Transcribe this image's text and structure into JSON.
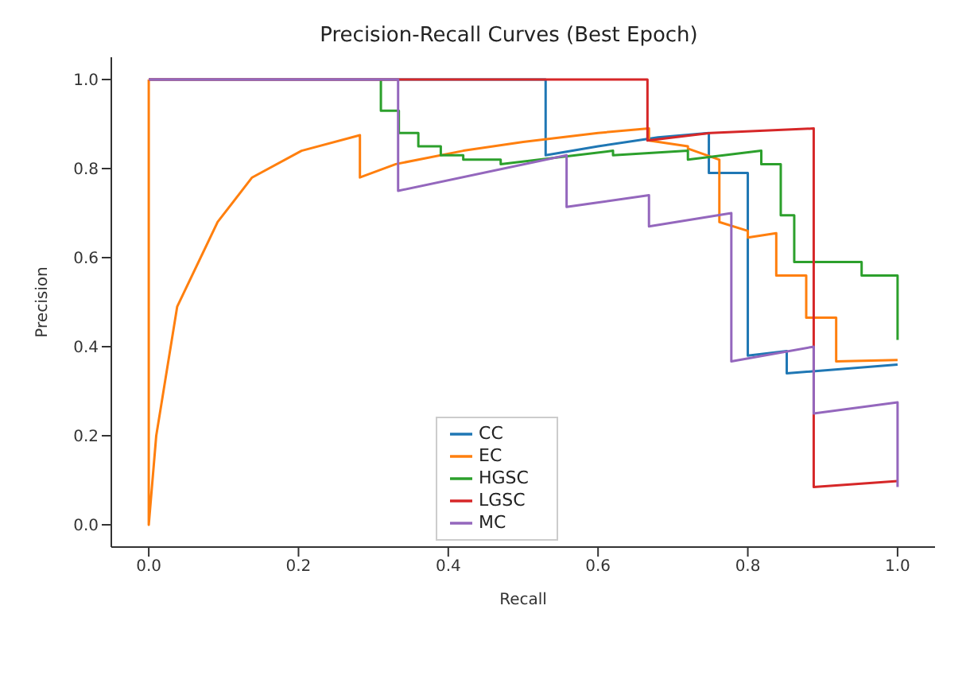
{
  "chart_data": {
    "type": "line",
    "title": "Precision-Recall Curves (Best Epoch)",
    "xlabel": "Recall",
    "ylabel": "Precision",
    "xlim": [
      -0.05,
      1.05
    ],
    "ylim": [
      -0.05,
      1.05
    ],
    "xticks": [
      {
        "value": 0,
        "label": "0.0"
      },
      0.2,
      0.4,
      0.6,
      0.8,
      {
        "value": 1,
        "label": "1.0"
      }
    ],
    "yticks": [
      {
        "value": 0,
        "label": "0.0"
      },
      0.2,
      0.4,
      0.6,
      0.8,
      {
        "value": 1,
        "label": "1.0"
      }
    ],
    "grid": false,
    "legend": "bottom",
    "marker": "none",
    "line_style": "solid",
    "series": [
      {
        "name": "CC",
        "color": "#1f77b4",
        "x": [
          0,
          0.53,
          0.53,
          0.6,
          0.68,
          0.748,
          0.748,
          0.8,
          0.8,
          0.852,
          0.852,
          1.0
        ],
        "values": [
          1.0,
          1.0,
          0.83,
          0.85,
          0.87,
          0.88,
          0.79,
          0.79,
          0.38,
          0.39,
          0.34,
          0.36
        ]
      },
      {
        "name": "EC",
        "color": "#ff7f0e",
        "x": [
          0,
          0,
          0.01,
          0.038,
          0.092,
          0.138,
          0.204,
          0.282,
          0.282,
          0.33,
          0.42,
          0.5,
          0.6,
          0.668,
          0.668,
          0.72,
          0.72,
          0.762,
          0.762,
          0.8,
          0.8,
          0.838,
          0.838,
          0.878,
          0.878,
          0.918,
          0.918,
          1.0
        ],
        "values": [
          1.0,
          0.0,
          0.2,
          0.49,
          0.68,
          0.78,
          0.84,
          0.875,
          0.78,
          0.81,
          0.84,
          0.86,
          0.88,
          0.89,
          0.863,
          0.85,
          0.845,
          0.82,
          0.68,
          0.66,
          0.645,
          0.655,
          0.56,
          0.56,
          0.465,
          0.465,
          0.367,
          0.37
        ]
      },
      {
        "name": "HGSC",
        "color": "#2ca02c",
        "x": [
          0.31,
          0.31,
          0.334,
          0.334,
          0.36,
          0.36,
          0.39,
          0.39,
          0.42,
          0.42,
          0.47,
          0.47,
          0.62,
          0.62,
          0.72,
          0.72,
          0.818,
          0.818,
          0.844,
          0.844,
          0.862,
          0.862,
          0.952,
          0.952,
          1.0,
          1.0
        ],
        "values": [
          1.0,
          0.93,
          0.93,
          0.88,
          0.88,
          0.85,
          0.85,
          0.83,
          0.83,
          0.82,
          0.82,
          0.81,
          0.84,
          0.83,
          0.84,
          0.82,
          0.84,
          0.81,
          0.81,
          0.695,
          0.695,
          0.59,
          0.59,
          0.56,
          0.56,
          0.415
        ]
      },
      {
        "name": "LGSC",
        "color": "#d62728",
        "x": [
          0,
          0.666,
          0.666,
          0.75,
          0.888,
          0.888,
          1.0
        ],
        "values": [
          1.0,
          1.0,
          0.863,
          0.88,
          0.89,
          0.085,
          0.098
        ]
      },
      {
        "name": "MC",
        "color": "#9467bd",
        "x": [
          0,
          0.333,
          0.333,
          0.558,
          0.558,
          0.668,
          0.668,
          0.778,
          0.778,
          0.888,
          0.888,
          1.0,
          1.0
        ],
        "values": [
          1.0,
          1.0,
          0.75,
          0.83,
          0.714,
          0.74,
          0.67,
          0.7,
          0.367,
          0.4,
          0.25,
          0.275,
          0.085
        ]
      }
    ]
  }
}
